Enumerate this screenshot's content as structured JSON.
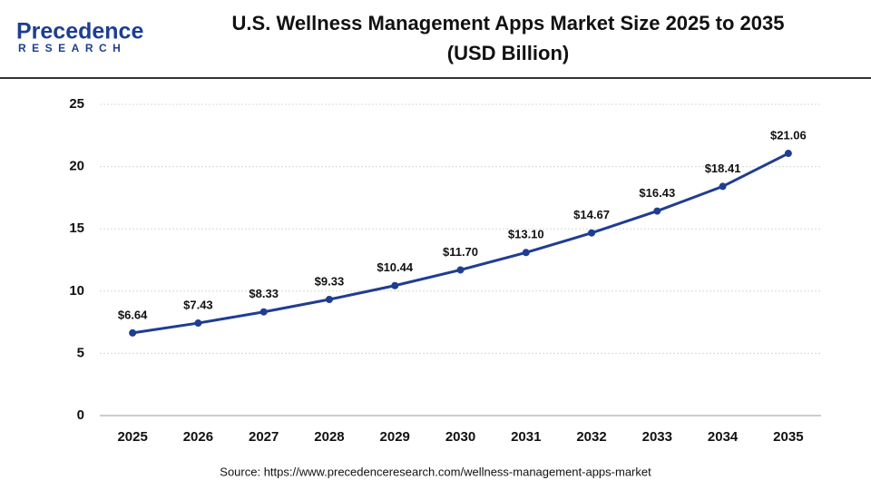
{
  "logo": {
    "name": "Precedence",
    "tagline": "RESEARCH"
  },
  "chart_data": {
    "type": "line",
    "title": "U.S. Wellness Management Apps Market Size 2025 to 2035",
    "subtitle": "(USD Billion)",
    "categories": [
      "2025",
      "2026",
      "2027",
      "2028",
      "2029",
      "2030",
      "2031",
      "2032",
      "2033",
      "2034",
      "2035"
    ],
    "values": [
      6.64,
      7.43,
      8.33,
      9.33,
      10.44,
      11.7,
      13.1,
      14.67,
      16.43,
      18.41,
      21.06
    ],
    "value_labels": [
      "$6.64",
      "$7.43",
      "$8.33",
      "$9.33",
      "$10.44",
      "$11.70",
      "$13.10",
      "$14.67",
      "$16.43",
      "$18.41",
      "$21.06"
    ],
    "color": "#1f3d91",
    "ylim": [
      0,
      25
    ],
    "yticks": [
      0,
      5,
      10,
      15,
      20,
      25
    ],
    "grid": true,
    "source": "Source: https://www.precedenceresearch.com/wellness-management-apps-market"
  }
}
